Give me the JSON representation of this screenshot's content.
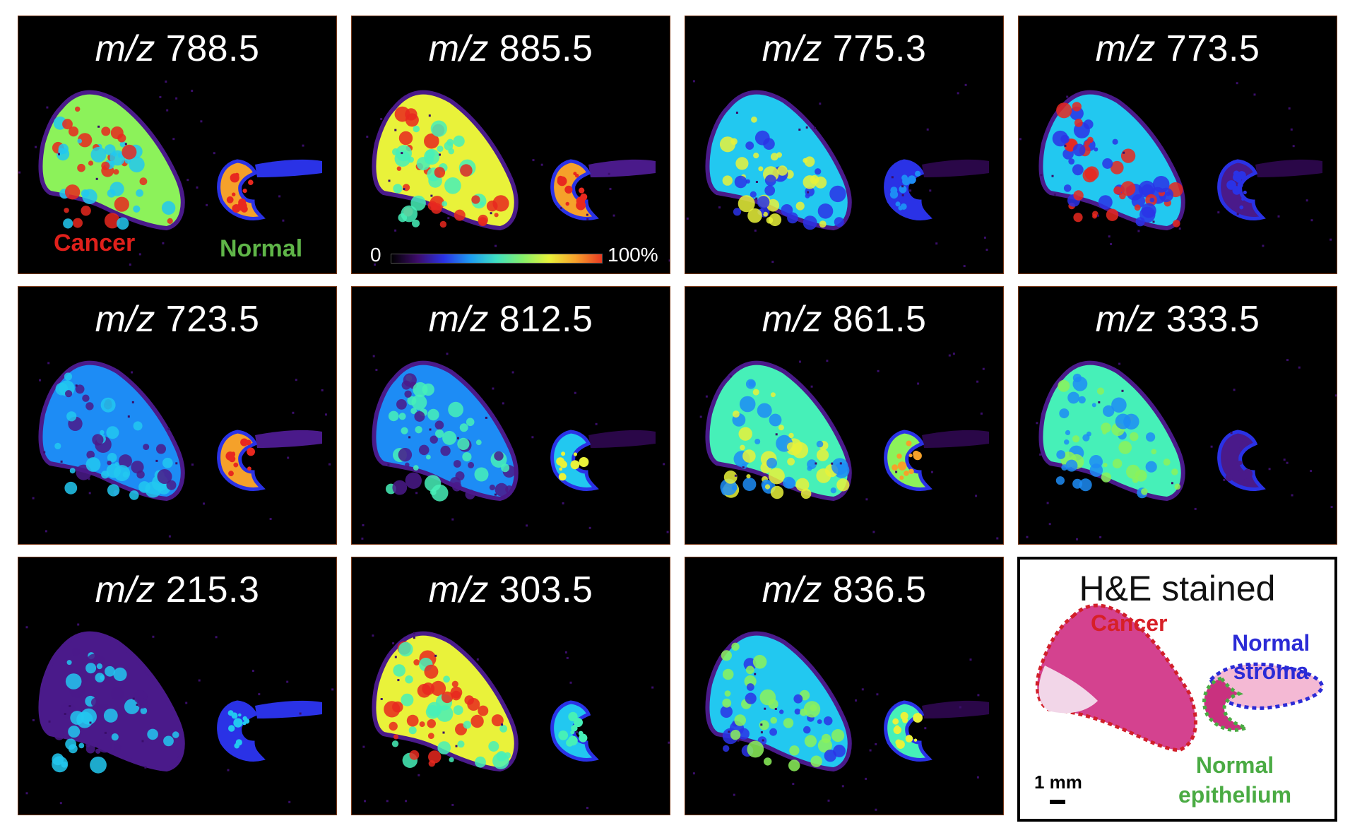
{
  "panels": [
    {
      "prefix": "m/z",
      "value": "788.5"
    },
    {
      "prefix": "m/z",
      "value": "885.5"
    },
    {
      "prefix": "m/z",
      "value": "775.3"
    },
    {
      "prefix": "m/z",
      "value": "773.5"
    },
    {
      "prefix": "m/z",
      "value": "723.5"
    },
    {
      "prefix": "m/z",
      "value": "812.5"
    },
    {
      "prefix": "m/z",
      "value": "861.5"
    },
    {
      "prefix": "m/z",
      "value": "333.5"
    },
    {
      "prefix": "m/z",
      "value": "215.3"
    },
    {
      "prefix": "m/z",
      "value": "303.5"
    },
    {
      "prefix": "m/z",
      "value": "836.5"
    }
  ],
  "labels": {
    "cancer": "Cancer",
    "normal": "Normal"
  },
  "colorbar": {
    "min_label": "0",
    "max_label": "100%"
  },
  "he_panel": {
    "title": "H&E stained",
    "cancer": "Cancer",
    "normal_stroma_line1": "Normal",
    "normal_stroma_line2": "stroma",
    "normal_epi_line1": "Normal",
    "normal_epi_line2": "epithelium",
    "scale": "1 mm"
  },
  "colors": {
    "cancer": "#e0201b",
    "normal": "#5fb548",
    "stroma": "#2b2bd6"
  }
}
